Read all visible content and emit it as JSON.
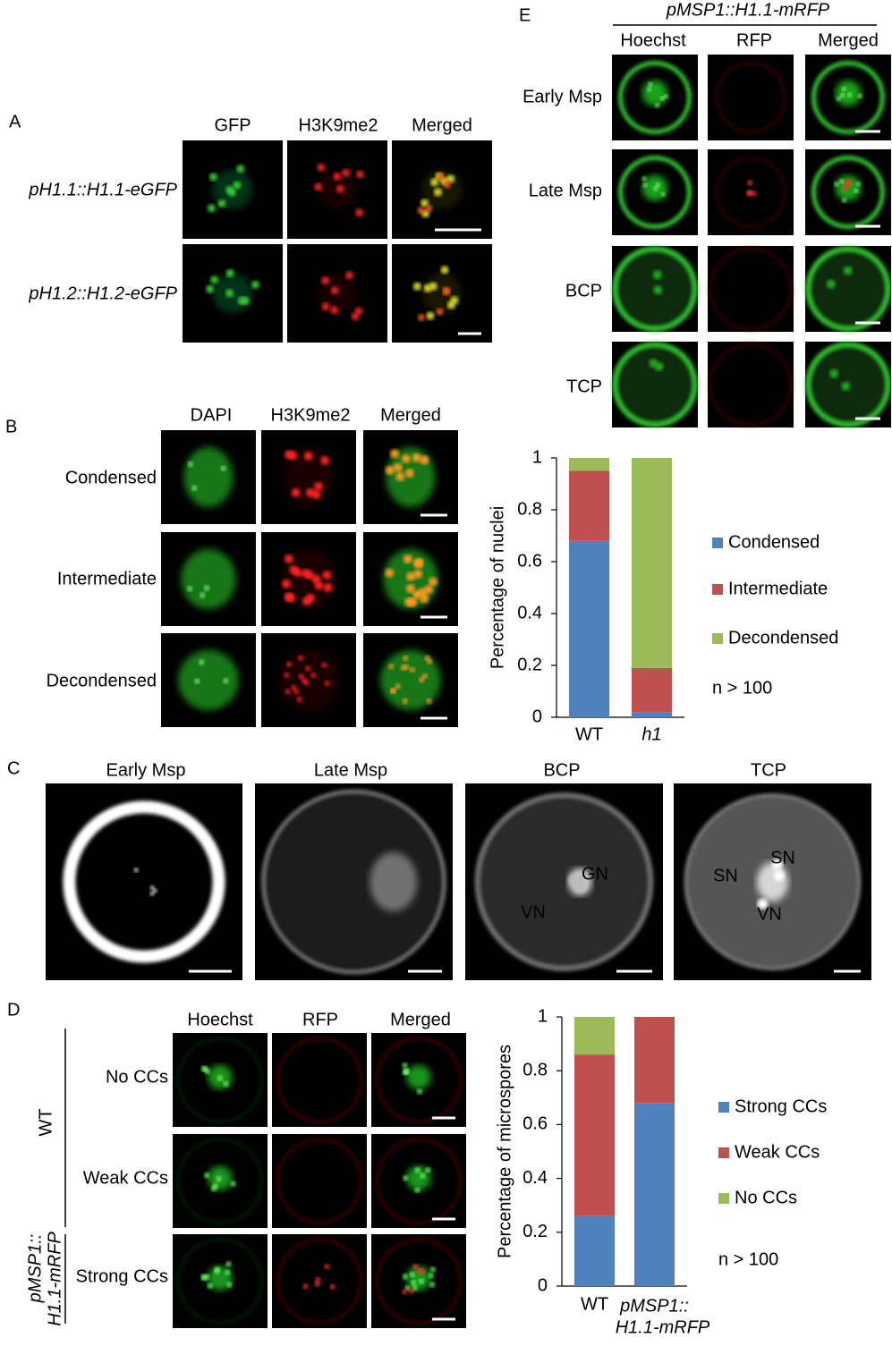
{
  "panel_a": {
    "label": "A",
    "columns": [
      "GFP",
      "H3K9me2",
      "Merged"
    ],
    "rows": [
      "pH1.1::H1.1-eGFP",
      "pH1.2::H1.2-eGFP"
    ]
  },
  "panel_b": {
    "label": "B",
    "columns": [
      "DAPI",
      "H3K9me2",
      "Merged"
    ],
    "rows": [
      "Condensed",
      "Intermediate",
      "Decondensed"
    ]
  },
  "panel_c": {
    "label": "C",
    "columns": [
      "Early Msp",
      "Late Msp",
      "BCP",
      "TCP"
    ],
    "annotations": [
      "GN",
      "VN",
      "SN",
      "SN",
      "VN"
    ]
  },
  "panel_d": {
    "label": "D",
    "columns": [
      "Hoechst",
      "RFP",
      "Merged"
    ],
    "rows": [
      "No CCs",
      "Weak CCs",
      "Strong CCs"
    ],
    "groups": [
      "WT",
      [
        "pMSP1::",
        "H1.1-mRFP"
      ]
    ]
  },
  "panel_e": {
    "label": "E",
    "construct": "pMSP1::H1.1-mRFP",
    "columns": [
      "Hoechst",
      "RFP",
      "Merged"
    ],
    "rows": [
      "Early Msp",
      "Late Msp",
      "BCP",
      "TCP"
    ]
  },
  "chart_data": [
    {
      "type": "stacked_bar",
      "ylabel": "Percentage of nuclei",
      "categories": [
        "WT",
        "h1"
      ],
      "series": [
        {
          "name": "Condensed",
          "color": "#4f81bd",
          "values": [
            0.68,
            0.02
          ]
        },
        {
          "name": "Intermediate",
          "color": "#c0504d",
          "values": [
            0.27,
            0.17
          ]
        },
        {
          "name": "Decondensed",
          "color": "#9bbb59",
          "values": [
            0.05,
            0.81
          ]
        }
      ],
      "ylim": [
        0,
        1
      ],
      "yticks": [
        0,
        0.2,
        0.4,
        0.6,
        0.8,
        1
      ],
      "note": "n > 100",
      "legend": "right"
    },
    {
      "type": "stacked_bar",
      "ylabel": "Percentage of microspores",
      "categories": [
        "WT",
        [
          "pMSP1::",
          "H1.1-mRFP"
        ]
      ],
      "series": [
        {
          "name": "Strong CCs",
          "color": "#4f81bd",
          "values": [
            0.26,
            0.68
          ]
        },
        {
          "name": "Weak CCs",
          "color": "#c0504d",
          "values": [
            0.6,
            0.32
          ]
        },
        {
          "name": "No CCs",
          "color": "#9bbb59",
          "values": [
            0.14,
            0
          ]
        }
      ],
      "ylim": [
        0,
        1
      ],
      "yticks": [
        0,
        0.2,
        0.4,
        0.6,
        0.8,
        1
      ],
      "note": "n > 100",
      "legend": "right"
    }
  ]
}
